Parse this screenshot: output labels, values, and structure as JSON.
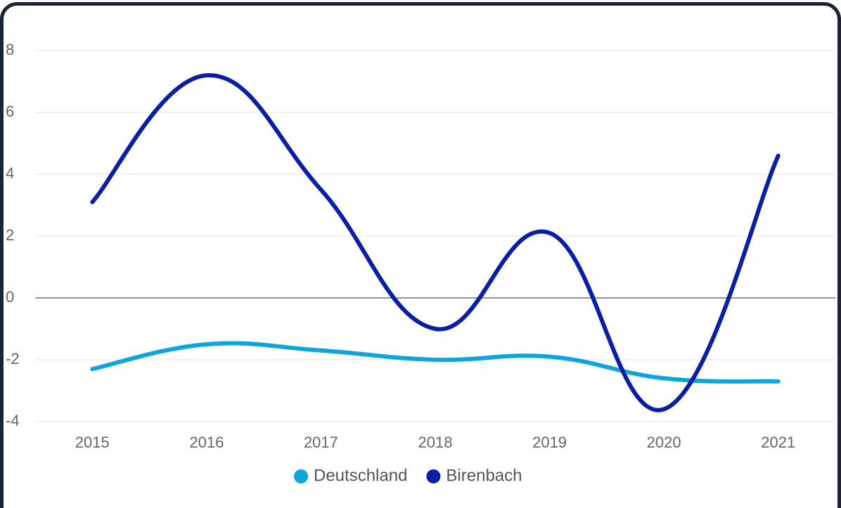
{
  "chart_data": {
    "type": "line",
    "categories": [
      "2015",
      "2016",
      "2017",
      "2018",
      "2019",
      "2020",
      "2021"
    ],
    "series": [
      {
        "name": "Deutschland",
        "color": "#0ea5dc",
        "values": [
          -2.3,
          -1.5,
          -1.7,
          -2.0,
          -1.9,
          -2.6,
          -2.7
        ]
      },
      {
        "name": "Birenbach",
        "color": "#0a1fa3",
        "values": [
          3.1,
          7.2,
          3.5,
          -1.0,
          2.1,
          -3.6,
          4.6
        ]
      }
    ],
    "ylim": [
      -4,
      8
    ],
    "yticks": [
      -4,
      -2,
      0,
      2,
      4,
      6,
      8
    ],
    "grid": true
  }
}
